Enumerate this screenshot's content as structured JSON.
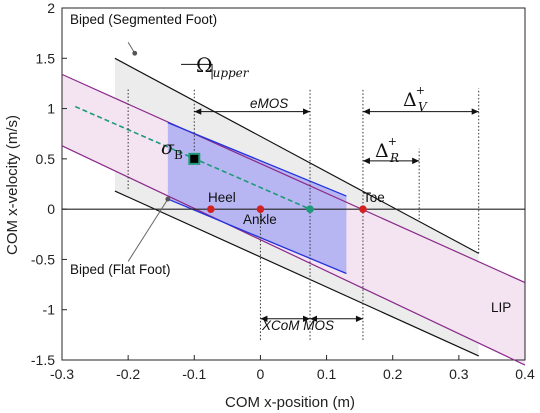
{
  "chart_data": {
    "type": "diagram",
    "xlabel": "COM x-position (m)",
    "ylabel": "COM x-velocity (m/s)",
    "xlim": [
      -0.3,
      0.4
    ],
    "ylim": [
      -1.5,
      2
    ],
    "x_ticks": [
      "-0.3",
      "-0.2",
      "-0.1",
      "0",
      "0.1",
      "0.2",
      "0.3",
      "0.4"
    ],
    "y_ticks": [
      "-1.5",
      "-1",
      "-0.5",
      "0",
      "0.5",
      "1",
      "1.5",
      "2"
    ],
    "regions": [
      {
        "name": "Biped (Segmented Foot)",
        "color": "#ececec",
        "polygon": [
          [
            -0.22,
            1.5
          ],
          [
            0.33,
            -0.44
          ],
          [
            0.33,
            -1.46
          ],
          [
            -0.22,
            0.18
          ]
        ]
      },
      {
        "name": "LIP",
        "color": "#f4e4f2",
        "polygon": [
          [
            -0.3,
            1.34
          ],
          [
            0.4,
            -0.73
          ],
          [
            0.4,
            -1.55
          ],
          [
            -0.3,
            0.63
          ]
        ]
      },
      {
        "name": "Biped (Flat Foot)",
        "color": "#b8b6f2",
        "polygon": [
          [
            -0.14,
            0.86
          ],
          [
            0.13,
            0.13
          ],
          [
            0.13,
            -0.64
          ],
          [
            -0.14,
            0.1
          ]
        ]
      }
    ],
    "points": [
      {
        "name": "Heel",
        "x": -0.075,
        "y": 0,
        "color": "#d42020"
      },
      {
        "name": "Ankle",
        "x": 0.0,
        "y": 0,
        "color": "#d42020"
      },
      {
        "name": "Toe",
        "x": 0.155,
        "y": 0,
        "color": "#d42020"
      },
      {
        "name": "XCoM",
        "x": 0.075,
        "y": 0,
        "color": "#1e9a7a"
      },
      {
        "name": "state",
        "x": -0.1,
        "y": 0.5,
        "color": "#1e9a7a"
      }
    ],
    "trajectory": {
      "color": "#1e9a7a",
      "points": [
        [
          -0.28,
          1.02
        ],
        [
          0.075,
          0
        ]
      ]
    }
  },
  "labels": {
    "segmented_foot": "Biped (Segmented Foot)",
    "flat_foot": "Biped (Flat Foot)",
    "lip": "LIP",
    "heel": "Heel",
    "ankle": "Ankle",
    "toe": "Toe",
    "emos": "eMOS",
    "xcom_mos": "XCoM MOS",
    "omega": "Ω",
    "omega_sub": "upper",
    "sigma": "σ",
    "sigma_sub": "B",
    "delta_v": "Δ",
    "delta_v_sup": "+",
    "delta_v_sub": "V",
    "delta_r": "Δ",
    "delta_r_sup": "+",
    "delta_r_sub": "R"
  },
  "colors": {
    "segmented_edge": "#111111",
    "lip_edge": "#8a2a8a",
    "flat_edge": "#2233dd",
    "marker": "#d42020",
    "xcom": "#1e9a7a"
  }
}
